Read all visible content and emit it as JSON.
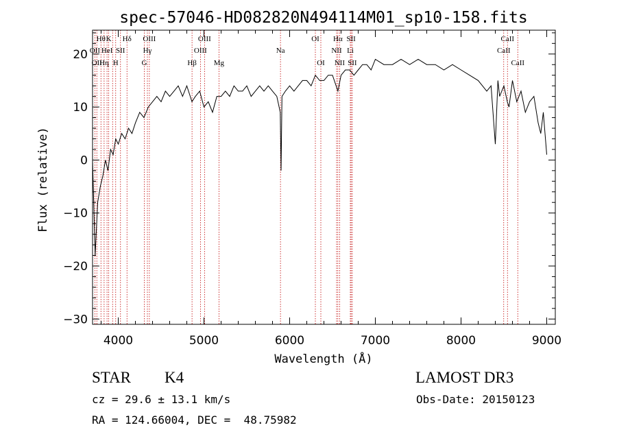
{
  "chart_data": {
    "type": "line",
    "title": "spec-57046-HD082820N494114M01_sp10-158.fits",
    "xlabel": "Wavelength (Å)",
    "ylabel": "Flux (relative)",
    "xlim": [
      3700,
      9100
    ],
    "ylim": [
      -31,
      24.5
    ],
    "xticks": [
      4000,
      5000,
      6000,
      7000,
      8000,
      9000
    ],
    "xtick_labels": [
      "4000",
      "5000",
      "6000",
      "7000",
      "8000",
      "9000"
    ],
    "yticks": [
      -30,
      -20,
      -10,
      0,
      10,
      20
    ],
    "ytick_labels": [
      "−30",
      "−20",
      "−10",
      "0",
      "10",
      "20"
    ],
    "grid": false,
    "series": [
      {
        "name": "spectrum",
        "x": [
          3700,
          3730,
          3760,
          3790,
          3820,
          3850,
          3880,
          3910,
          3940,
          3970,
          4000,
          4040,
          4080,
          4120,
          4160,
          4200,
          4250,
          4300,
          4350,
          4400,
          4450,
          4500,
          4550,
          4600,
          4650,
          4700,
          4750,
          4800,
          4860,
          4900,
          4950,
          5000,
          5050,
          5100,
          5150,
          5200,
          5250,
          5300,
          5350,
          5400,
          5450,
          5500,
          5550,
          5600,
          5650,
          5700,
          5750,
          5800,
          5850,
          5890,
          5900,
          5910,
          5950,
          6000,
          6050,
          6100,
          6150,
          6200,
          6250,
          6300,
          6350,
          6400,
          6450,
          6500,
          6563,
          6600,
          6650,
          6700,
          6750,
          6800,
          6850,
          6900,
          6950,
          7000,
          7100,
          7200,
          7300,
          7400,
          7500,
          7600,
          7700,
          7800,
          7900,
          8000,
          8100,
          8200,
          8300,
          8350,
          8400,
          8430,
          8450,
          8500,
          8540,
          8560,
          8600,
          8650,
          8700,
          8750,
          8800,
          8850,
          8900,
          8930,
          8960,
          9000
        ],
        "y": [
          0,
          -18,
          -8,
          -5,
          -3,
          0,
          -2,
          2,
          1,
          4,
          3,
          5,
          4,
          6,
          5,
          7,
          9,
          8,
          10,
          11,
          12,
          11,
          13,
          12,
          13,
          14,
          12,
          14,
          11,
          12,
          13,
          10,
          11,
          9,
          12,
          12,
          13,
          12,
          14,
          13,
          13,
          14,
          12,
          13,
          14,
          13,
          14,
          13,
          12,
          9,
          -2,
          12,
          13,
          14,
          13,
          14,
          15,
          15,
          14,
          16,
          15,
          15,
          16,
          16,
          13,
          16,
          17,
          17,
          16,
          17,
          18,
          18,
          17,
          19,
          18,
          18,
          19,
          18,
          19,
          18,
          18,
          17,
          18,
          17,
          16,
          15,
          13,
          14,
          3,
          15,
          12,
          14,
          11,
          10,
          15,
          11,
          13,
          9,
          11,
          12,
          7,
          5,
          9,
          1
        ]
      }
    ],
    "line_markers": [
      {
        "wl": 3727,
        "label": "OII",
        "row": 1
      },
      {
        "wl": 3750,
        "label": "OII",
        "row": 2
      },
      {
        "wl": 3798,
        "label": "Hθ",
        "row": 0
      },
      {
        "wl": 3835,
        "label": "Hη",
        "row": 2
      },
      {
        "wl": 3869,
        "label": "HeI",
        "row": 1
      },
      {
        "wl": 3889,
        "label": "K",
        "row": 0
      },
      {
        "wl": 3934,
        "label": "",
        "row": 0
      },
      {
        "wl": 3970,
        "label": "H",
        "row": 2
      },
      {
        "wl": 4026,
        "label": "SII",
        "row": 1
      },
      {
        "wl": 4102,
        "label": "Hδ",
        "row": 0
      },
      {
        "wl": 4304,
        "label": "G",
        "row": 2
      },
      {
        "wl": 4340,
        "label": "Hγ",
        "row": 1
      },
      {
        "wl": 4363,
        "label": "OIII",
        "row": 0
      },
      {
        "wl": 4861,
        "label": "Hβ",
        "row": 2
      },
      {
        "wl": 4959,
        "label": "OIII",
        "row": 1
      },
      {
        "wl": 5007,
        "label": "OIII",
        "row": 0
      },
      {
        "wl": 5175,
        "label": "Mg",
        "row": 2
      },
      {
        "wl": 5893,
        "label": "Na",
        "row": 1
      },
      {
        "wl": 6300,
        "label": "OI",
        "row": 0
      },
      {
        "wl": 6364,
        "label": "OI",
        "row": 2
      },
      {
        "wl": 6548,
        "label": "NII",
        "row": 1
      },
      {
        "wl": 6563,
        "label": "Hα",
        "row": 0
      },
      {
        "wl": 6583,
        "label": "NII",
        "row": 2
      },
      {
        "wl": 6708,
        "label": "Li",
        "row": 1
      },
      {
        "wl": 6717,
        "label": "SII",
        "row": 0
      },
      {
        "wl": 6731,
        "label": "SII",
        "row": 2
      },
      {
        "wl": 8498,
        "label": "CaII",
        "row": 1
      },
      {
        "wl": 8542,
        "label": "CaII",
        "row": 0
      },
      {
        "wl": 8662,
        "label": "CaII",
        "row": 2
      }
    ]
  },
  "info": {
    "object_type": "STAR",
    "subclass": "K4",
    "survey": "LAMOST DR3",
    "cz": "cz = 29.6 ± 13.1 km/s",
    "obs_date": "Obs-Date: 20150123",
    "coords": "RA = 124.66004, DEC =  48.75982"
  },
  "colors": {
    "spectrum": "#000000",
    "marker_line": "#c00000",
    "axis": "#000000"
  }
}
